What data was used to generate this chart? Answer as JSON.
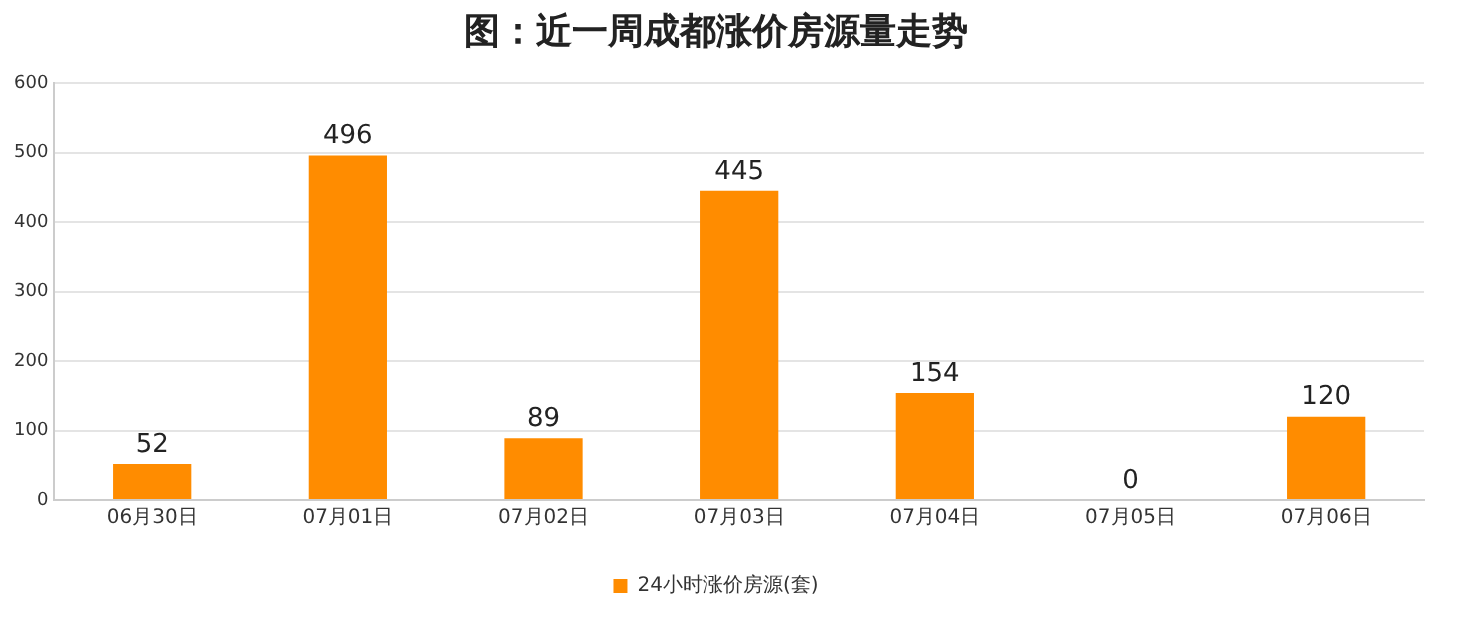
{
  "chart_data": {
    "type": "bar",
    "title": "图：近一周成都涨价房源量走势",
    "categories": [
      "06月30日",
      "07月01日",
      "07月02日",
      "07月03日",
      "07月04日",
      "07月05日",
      "07月06日"
    ],
    "series": [
      {
        "name": "24小时涨价房源(套)",
        "color": "#ff8c00",
        "values": [
          52,
          496,
          89,
          445,
          154,
          0,
          120
        ]
      }
    ],
    "ylim": [
      0,
      600
    ],
    "yticks": [
      0,
      100,
      200,
      300,
      400,
      500,
      600
    ],
    "grid": "y",
    "legend": "bottom",
    "data_labels": true
  }
}
